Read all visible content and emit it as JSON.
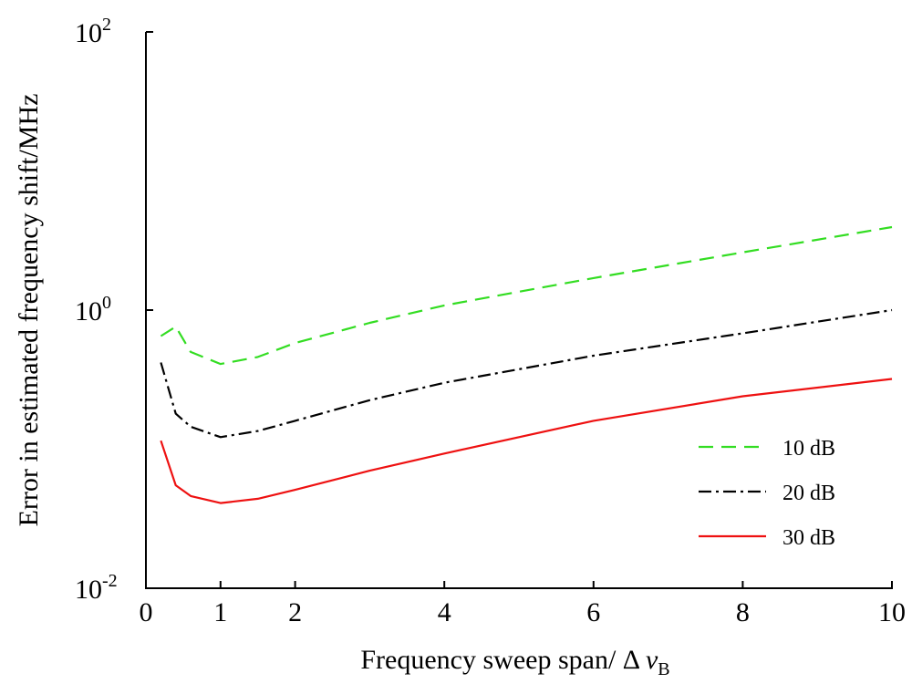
{
  "chart_data": {
    "type": "line",
    "xlabel": "Frequency sweep span/ Δ ",
    "xlabel_symbol": "ν",
    "xlabel_subscript": "B",
    "ylabel": "Error in estimated frequency shift/MHz",
    "xlim": [
      0,
      10
    ],
    "ylim": [
      0.01,
      100
    ],
    "yscale": "log",
    "grid": false,
    "legend_position": "bottom-right",
    "x_ticks": [
      {
        "value": 0,
        "label": "0"
      },
      {
        "value": 1,
        "label": "1"
      },
      {
        "value": 2,
        "label": "2"
      },
      {
        "value": 4,
        "label": "4"
      },
      {
        "value": 6,
        "label": "6"
      },
      {
        "value": 8,
        "label": "8"
      },
      {
        "value": 10,
        "label": "10"
      }
    ],
    "y_ticks": [
      {
        "value": 0.01,
        "base": "10",
        "exp": "-2"
      },
      {
        "value": 1,
        "base": "10",
        "exp": "0"
      },
      {
        "value": 100,
        "base": "10",
        "exp": "2"
      }
    ],
    "series": [
      {
        "name": "10 dB",
        "color": "#33dd22",
        "dash": "16,9",
        "x": [
          0.2,
          0.4,
          0.6,
          1.0,
          1.5,
          2.0,
          3.0,
          4.0,
          6.0,
          8.0,
          10.0
        ],
        "y": [
          0.65,
          0.76,
          0.5,
          0.41,
          0.46,
          0.58,
          0.81,
          1.08,
          1.7,
          2.6,
          3.95
        ]
      },
      {
        "name": "20 dB",
        "color": "#000000",
        "dash": "14,5,3,5",
        "x": [
          0.2,
          0.4,
          0.6,
          1.0,
          1.5,
          2.0,
          3.0,
          4.0,
          6.0,
          8.0,
          10.0
        ],
        "y": [
          0.42,
          0.18,
          0.145,
          0.122,
          0.135,
          0.16,
          0.225,
          0.3,
          0.47,
          0.68,
          1.0
        ]
      },
      {
        "name": "30 dB",
        "color": "#ee1111",
        "dash": "",
        "x": [
          0.2,
          0.4,
          0.6,
          1.0,
          1.5,
          2.0,
          3.0,
          4.0,
          6.0,
          8.0,
          10.0
        ],
        "y": [
          0.115,
          0.055,
          0.046,
          0.041,
          0.044,
          0.051,
          0.07,
          0.093,
          0.16,
          0.24,
          0.32
        ]
      }
    ]
  }
}
